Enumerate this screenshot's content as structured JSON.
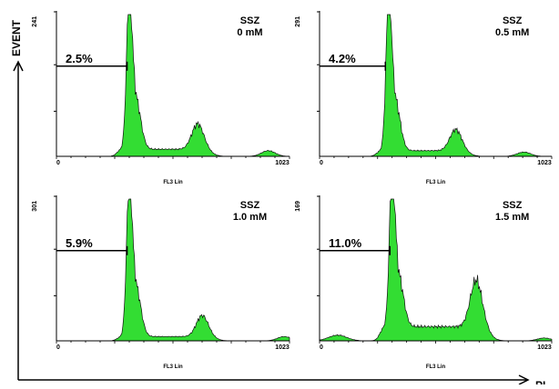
{
  "figure": {
    "y_axis_label": "EVENT",
    "x_axis_label": "PI"
  },
  "chart_data": [
    {
      "type": "area",
      "treatment": "SSZ",
      "dose": "0 mM",
      "x_label": "FL3 Lin",
      "y_max_label": "241",
      "xlim": [
        0,
        1023
      ],
      "x_ticks": [
        "0",
        "1023"
      ],
      "gate_label": "2.5%",
      "gate_range": [
        0,
        310
      ],
      "fill_color": "#33dd33",
      "peak1": {
        "x": 320,
        "height": 1.0
      },
      "peak2": {
        "x": 620,
        "height": 0.18
      },
      "peak3": {
        "x": 930,
        "height": 0.04
      },
      "baseline": 0.05
    },
    {
      "type": "area",
      "treatment": "SSZ",
      "dose": "0.5 mM",
      "x_label": "FL3 Lin",
      "y_max_label": "291",
      "xlim": [
        0,
        1023
      ],
      "x_ticks": [
        "0",
        "1023"
      ],
      "gate_label": "4.2%",
      "gate_range": [
        0,
        290
      ],
      "fill_color": "#33dd33",
      "peak1": {
        "x": 305,
        "height": 1.0
      },
      "peak2": {
        "x": 600,
        "height": 0.15
      },
      "peak3": {
        "x": 900,
        "height": 0.03
      },
      "baseline": 0.04
    },
    {
      "type": "area",
      "treatment": "SSZ",
      "dose": "1.0 mM",
      "x_label": "FL3 Lin",
      "y_max_label": "301",
      "xlim": [
        0,
        1023
      ],
      "x_ticks": [
        "0",
        "1023"
      ],
      "gate_label": "5.9%",
      "gate_range": [
        0,
        310
      ],
      "fill_color": "#33dd33",
      "peak1": {
        "x": 320,
        "height": 1.0
      },
      "peak2": {
        "x": 640,
        "height": 0.15
      },
      "peak3": {
        "x": 1000,
        "height": 0.03
      },
      "baseline": 0.03
    },
    {
      "type": "area",
      "treatment": "SSZ",
      "dose": "1.5 mM",
      "x_label": "FL3 Lin",
      "y_max_label": "169",
      "xlim": [
        0,
        1023
      ],
      "x_ticks": [
        "0",
        "1023"
      ],
      "gate_label": "11.0%",
      "gate_range": [
        0,
        310
      ],
      "fill_color": "#33dd33",
      "peak1": {
        "x": 320,
        "height": 1.0
      },
      "peak2": {
        "x": 690,
        "height": 0.33
      },
      "peak3": {
        "x": 990,
        "height": 0.02
      },
      "baseline": 0.1
    }
  ]
}
